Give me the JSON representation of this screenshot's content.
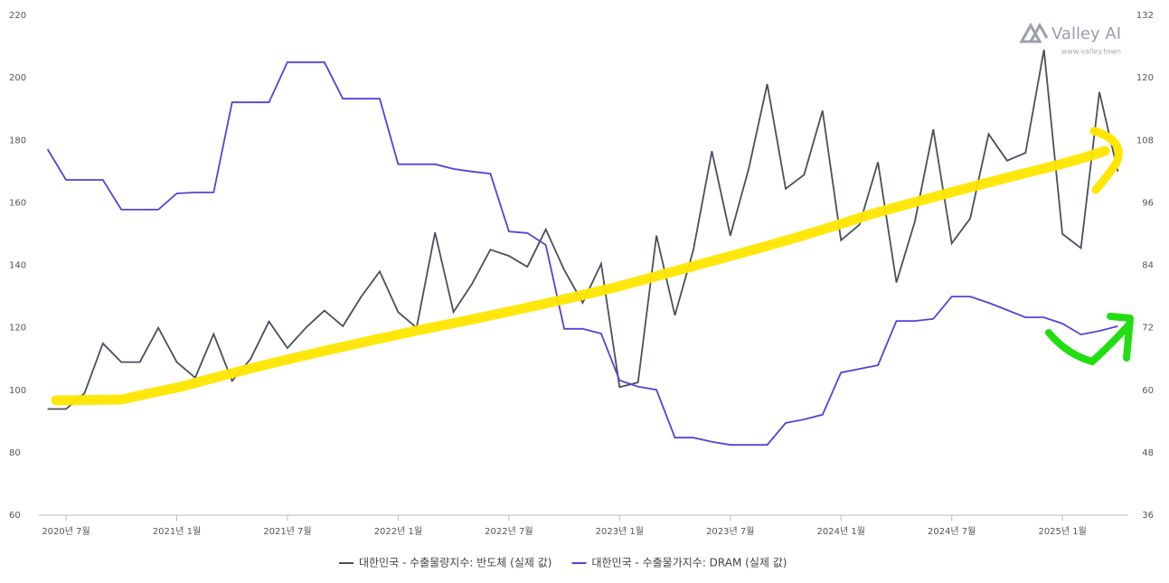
{
  "chart_data": {
    "type": "line",
    "watermark": {
      "brand": "Valley AI",
      "url": "www.valley.town"
    },
    "x": [
      "2020-06",
      "2020-07",
      "2020-08",
      "2020-09",
      "2020-10",
      "2020-11",
      "2020-12",
      "2021-01",
      "2021-02",
      "2021-03",
      "2021-04",
      "2021-05",
      "2021-06",
      "2021-07",
      "2021-08",
      "2021-09",
      "2021-10",
      "2021-11",
      "2021-12",
      "2022-01",
      "2022-02",
      "2022-03",
      "2022-04",
      "2022-05",
      "2022-06",
      "2022-07",
      "2022-08",
      "2022-09",
      "2022-10",
      "2022-11",
      "2022-12",
      "2023-01",
      "2023-02",
      "2023-03",
      "2023-04",
      "2023-05",
      "2023-06",
      "2023-07",
      "2023-08",
      "2023-09",
      "2023-10",
      "2023-11",
      "2023-12",
      "2024-01",
      "2024-02",
      "2024-03",
      "2024-04",
      "2024-05",
      "2024-06",
      "2024-07",
      "2024-08",
      "2024-09",
      "2024-10",
      "2024-11",
      "2024-12",
      "2025-01",
      "2025-02",
      "2025-03",
      "2025-04"
    ],
    "xticks": [
      {
        "value": "2020-07",
        "label": "2020년 7월"
      },
      {
        "value": "2021-01",
        "label": "2021년 1월"
      },
      {
        "value": "2021-07",
        "label": "2021년 7월"
      },
      {
        "value": "2022-01",
        "label": "2022년 1월"
      },
      {
        "value": "2022-07",
        "label": "2022년 7월"
      },
      {
        "value": "2023-01",
        "label": "2023년 1월"
      },
      {
        "value": "2023-07",
        "label": "2023년 7월"
      },
      {
        "value": "2024-01",
        "label": "2024년 1월"
      },
      {
        "value": "2024-07",
        "label": "2024년 7월"
      },
      {
        "value": "2025-01",
        "label": "2025년 1월"
      }
    ],
    "ylim": [
      60,
      220
    ],
    "yticks": [
      60,
      80,
      100,
      120,
      140,
      160,
      180,
      200,
      220
    ],
    "y2lim": [
      36,
      132
    ],
    "y2ticks": [
      36,
      48,
      60,
      72,
      84,
      96,
      108,
      120,
      132
    ],
    "grid": false,
    "legend": "bottom",
    "series": [
      {
        "name": "대한민국 - 수출물량지수: 반도체 (실제 값)",
        "color": "#4a4f5a",
        "axis": "y",
        "values": [
          94,
          94,
          99,
          115,
          109,
          109,
          120,
          109,
          104,
          118,
          103,
          110,
          122,
          113.5,
          120,
          125.5,
          120.5,
          130,
          138,
          125,
          120,
          150.5,
          125,
          134,
          145,
          143,
          139.5,
          151.5,
          138.5,
          128,
          140.5,
          101,
          102.5,
          149.5,
          124,
          145,
          176.5,
          149.5,
          171,
          198,
          164.5,
          169,
          189.5,
          148,
          153,
          173,
          134.5,
          154,
          183.5,
          147,
          155,
          182,
          173.5,
          176,
          209,
          150,
          145.5,
          195.5,
          170
        ]
      },
      {
        "name": "대한민국 - 수출물가지수: DRAM (실제 값)",
        "color": "#5b3fd6",
        "axis": "y2",
        "values": [
          106.3,
          100.4,
          100.4,
          100.4,
          94.7,
          94.7,
          94.7,
          97.8,
          98,
          98,
          115.3,
          115.3,
          115.3,
          123,
          123,
          123,
          116,
          116,
          116,
          103.4,
          103.4,
          103.4,
          102.5,
          102,
          101.6,
          90.5,
          90.2,
          87.9,
          71.8,
          71.8,
          70.9,
          61.9,
          60.7,
          60.1,
          50.9,
          50.9,
          50.1,
          49.5,
          49.5,
          49.5,
          53.7,
          54.4,
          55.3,
          63.4,
          64.1,
          64.8,
          73.3,
          73.3,
          73.7,
          78,
          78,
          76.8,
          75.4,
          74,
          74,
          72.8,
          70.7,
          71.4,
          72.3
        ]
      }
    ]
  }
}
